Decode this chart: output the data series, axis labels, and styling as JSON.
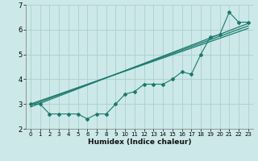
{
  "xlabel": "Humidex (Indice chaleur)",
  "bg_color": "#cce8e8",
  "grid_color": "#aacfcf",
  "line_color": "#1a7a6e",
  "xlim": [
    -0.5,
    23.5
  ],
  "ylim": [
    2,
    7
  ],
  "xticks": [
    0,
    1,
    2,
    3,
    4,
    5,
    6,
    7,
    8,
    9,
    10,
    11,
    12,
    13,
    14,
    15,
    16,
    17,
    18,
    19,
    20,
    21,
    22,
    23
  ],
  "yticks": [
    2,
    3,
    4,
    5,
    6,
    7
  ],
  "scatter_x": [
    0,
    1,
    2,
    3,
    4,
    5,
    6,
    7,
    8,
    9,
    10,
    11,
    12,
    13,
    14,
    15,
    16,
    17,
    18,
    19,
    20,
    21,
    22,
    23
  ],
  "scatter_y": [
    3.0,
    3.0,
    2.6,
    2.6,
    2.6,
    2.6,
    2.4,
    2.6,
    2.6,
    3.0,
    3.4,
    3.5,
    3.8,
    3.8,
    3.8,
    4.0,
    4.3,
    4.2,
    5.0,
    5.7,
    5.8,
    6.7,
    6.3,
    6.3
  ],
  "reg_line_x": [
    0,
    23
  ],
  "reg_line_y": [
    2.88,
    6.25
  ],
  "reg_line2_x": [
    0,
    23
  ],
  "reg_line2_y": [
    2.95,
    6.15
  ],
  "reg_line3_x": [
    0,
    23
  ],
  "reg_line3_y": [
    3.0,
    6.05
  ]
}
